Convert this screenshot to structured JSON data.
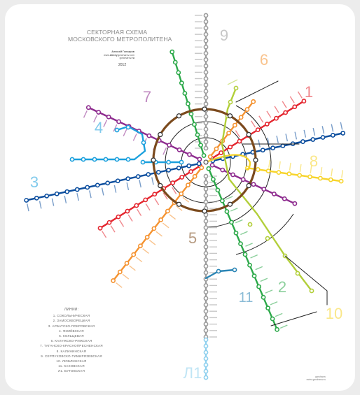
{
  "header": {
    "title_lines": [
      "СЕКТОРНАЯ СХЕМА",
      "МОСКОВСКОГО МЕТРОПОЛИТЕНА"
    ],
    "author": "Алексей Гончаров",
    "email_prefix": "www.",
    "email_user": "alexey",
    "email_domain": "goncharov.com",
    "site": "goncharov",
    "site_suffix": ".ru",
    "year": "2012"
  },
  "legend": {
    "heading": "ЛИНИИ:",
    "items": [
      "1. СОКОЛЬНИЧЕСКАЯ",
      "2. ЗАМОСКВОРЕЦКАЯ",
      "3. АРБАТСКО-ПОКРОВСКАЯ",
      "4. ФИЛЁВСКАЯ",
      "5. КОЛЬЦЕВАЯ",
      "6. КАЛУЖСКО-РИЖСКАЯ",
      "7. ТАГАНСКО-КРАСНОПРЕСНЕНСКАЯ",
      "8. КАЛИНИНСКАЯ",
      "9. СЕРПУХОВСКО-ТИМИРЯЗЕВСКАЯ",
      "10. ЛЮБЛИНСКАЯ",
      "11. КАХОВСКАЯ",
      "Л1. БУТОВСКАЯ"
    ]
  },
  "line_numbers": [
    "1",
    "2",
    "3",
    "4",
    "5",
    "6",
    "7",
    "8",
    "9",
    "10",
    "11",
    "Л1"
  ],
  "colors": {
    "line1": "#e4262f",
    "line2": "#2da94a",
    "line3": "#0c4e9e",
    "line4": "#1ba0dd",
    "line5": "#7b4a1d",
    "line6": "#f59331",
    "line7": "#8e2c8f",
    "line8": "#f7d42a",
    "line9": "#9b9b9b",
    "line10": "#b2cf3a",
    "line11": "#2b85b5",
    "lineL1": "#8ed0ee"
  },
  "credit": {
    "line1": "goncharov",
    "line2": "metro.goncharov.ru"
  }
}
